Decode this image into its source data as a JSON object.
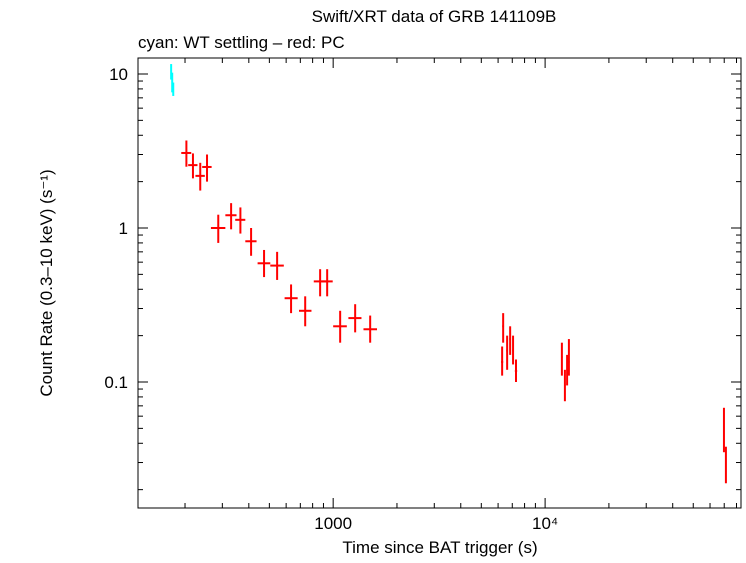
{
  "chart_data": {
    "type": "scatter",
    "title": "Swift/XRT data of GRB 141109B",
    "subtitle": "cyan: WT settling – red: PC",
    "x_label": "Time since BAT trigger (s)",
    "y_label": "Count Rate (0.3–10 keV) (s⁻¹)",
    "x_scale": "log",
    "y_scale": "log",
    "xlim": [
      120,
      84000
    ],
    "ylim": [
      0.0152,
      12.7
    ],
    "xticks": [
      1000,
      {
        "value": 10000,
        "label": "10⁴"
      }
    ],
    "yticks": [
      0.1,
      1,
      10
    ],
    "series": [
      {
        "color": "#00ffff",
        "x": [
          172,
          174,
          176
        ],
        "x_low": [
          171,
          173,
          175
        ],
        "x_high": [
          173,
          175,
          177
        ],
        "values": [
          10.2,
          8.8,
          8.0
        ],
        "y_low": [
          9.2,
          7.6,
          7.2
        ],
        "y_high": [
          11.6,
          10.2,
          8.8
        ]
      },
      {
        "color": "#ff0000",
        "x": [
          203,
          218,
          236,
          254,
          287,
          330,
          365,
          410,
          472,
          544,
          633,
          738,
          868,
          937,
          1079,
          1270,
          1495,
          6270,
          6340,
          6620,
          6840,
          7060,
          7290,
          12000,
          12400,
          12700,
          12950,
          69800,
          71300
        ],
        "x_low": [
          192,
          207,
          224,
          241,
          265,
          310,
          345,
          385,
          440,
          505,
          590,
          690,
          810,
          880,
          1000,
          1180,
          1390,
          6200,
          6280,
          6560,
          6780,
          7000,
          7200,
          11900,
          12300,
          12600,
          12850,
          69500,
          71000
        ],
        "x_high": [
          214,
          229,
          248,
          267,
          310,
          350,
          385,
          435,
          505,
          585,
          680,
          790,
          930,
          995,
          1160,
          1360,
          1610,
          6340,
          6400,
          6680,
          6900,
          7120,
          7380,
          12100,
          12500,
          12800,
          13050,
          70100,
          71600
        ],
        "values": [
          3.07,
          2.56,
          2.18,
          2.49,
          1.0,
          1.21,
          1.13,
          0.82,
          0.59,
          0.57,
          0.35,
          0.29,
          0.45,
          0.45,
          0.23,
          0.26,
          0.22,
          0.135,
          0.23,
          0.16,
          0.19,
          0.16,
          0.118,
          0.145,
          0.096,
          0.12,
          0.135,
          0.058,
          0.029
        ],
        "y_low": [
          2.5,
          2.1,
          1.75,
          2.0,
          0.8,
          0.98,
          0.92,
          0.66,
          0.48,
          0.46,
          0.28,
          0.23,
          0.36,
          0.36,
          0.18,
          0.21,
          0.18,
          0.11,
          0.18,
          0.12,
          0.15,
          0.13,
          0.1,
          0.11,
          0.075,
          0.095,
          0.11,
          0.035,
          0.022
        ],
        "y_high": [
          3.7,
          3.05,
          2.65,
          3.0,
          1.22,
          1.45,
          1.36,
          1.0,
          0.72,
          0.7,
          0.43,
          0.36,
          0.54,
          0.54,
          0.29,
          0.32,
          0.27,
          0.17,
          0.28,
          0.2,
          0.23,
          0.2,
          0.14,
          0.18,
          0.12,
          0.15,
          0.19,
          0.068,
          0.038
        ]
      }
    ]
  }
}
